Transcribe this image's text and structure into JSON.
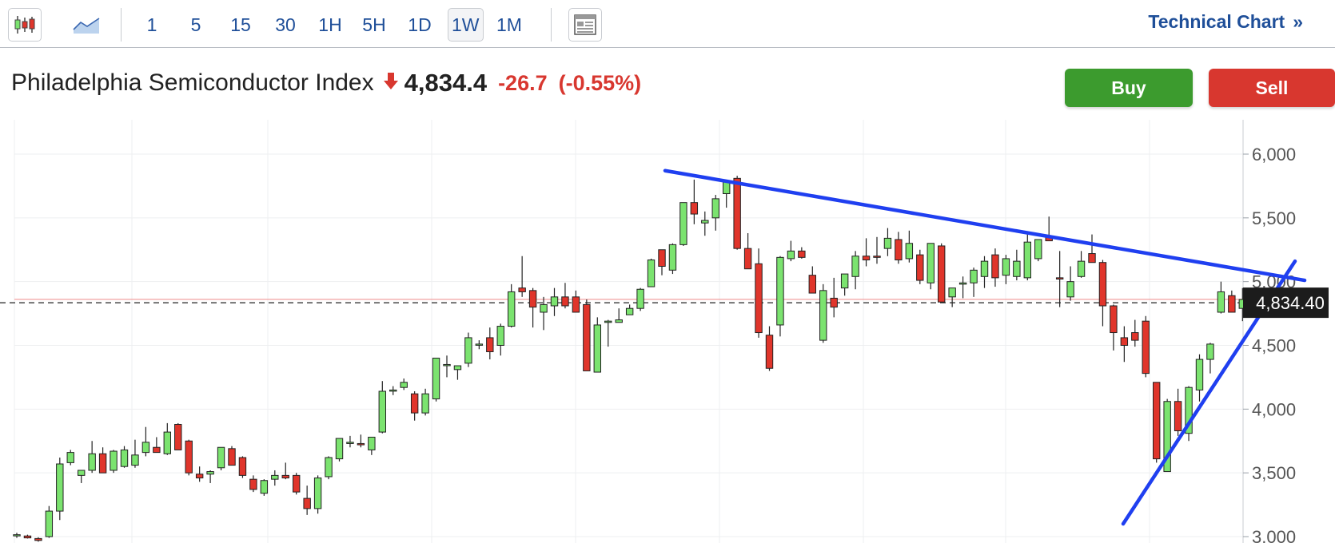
{
  "toolbar": {
    "intervals": [
      "1",
      "5",
      "15",
      "30",
      "1H",
      "5H",
      "1D",
      "1W",
      "1M"
    ],
    "active_interval": "1W",
    "technical_chart_label": "Technical Chart",
    "technical_chart_chevron": "»",
    "icons": [
      "candlestick-icon",
      "area-chart-icon",
      "news-layout-icon"
    ]
  },
  "quote": {
    "name": "Philadelphia Semiconductor Index",
    "price": "4,834.4",
    "change": "-26.7",
    "change_pct": "(-0.55%)",
    "direction": "down"
  },
  "buttons": {
    "buy": "Buy",
    "sell": "Sell"
  },
  "colors": {
    "up": "#7be36f",
    "down": "#e0352b",
    "trendline": "#1f3ff0",
    "buy": "#3c9b2e",
    "sell": "#d8372f",
    "link": "#1f4f99"
  },
  "chart_data": {
    "type": "candlestick",
    "interval": "1W",
    "ylim": [
      3000,
      6200
    ],
    "y_ticks": [
      "3,000",
      "3,500",
      "4,000",
      "4,500",
      "5,000",
      "5,500",
      "6,000"
    ],
    "y_tick_values": [
      3000,
      3500,
      4000,
      4500,
      5000,
      5500,
      6000
    ],
    "last_price_label": "4,834.40",
    "last_price": 4834.4,
    "reference_price": 4861.1,
    "candles_ohlc": [
      [
        3010,
        3030,
        2990,
        3015
      ],
      [
        3005,
        3015,
        2985,
        2990
      ],
      [
        2985,
        2995,
        2960,
        2970
      ],
      [
        3000,
        3240,
        2990,
        3200
      ],
      [
        3200,
        3620,
        3130,
        3570
      ],
      [
        3580,
        3680,
        3560,
        3660
      ],
      [
        3480,
        3520,
        3420,
        3520
      ],
      [
        3520,
        3750,
        3500,
        3650
      ],
      [
        3650,
        3700,
        3500,
        3500
      ],
      [
        3520,
        3680,
        3500,
        3670
      ],
      [
        3550,
        3710,
        3540,
        3680
      ],
      [
        3560,
        3760,
        3540,
        3640
      ],
      [
        3660,
        3860,
        3630,
        3740
      ],
      [
        3700,
        3780,
        3660,
        3660
      ],
      [
        3650,
        3890,
        3640,
        3820
      ],
      [
        3880,
        3890,
        3680,
        3680
      ],
      [
        3750,
        3760,
        3480,
        3500
      ],
      [
        3490,
        3550,
        3430,
        3460
      ],
      [
        3490,
        3520,
        3420,
        3510
      ],
      [
        3540,
        3700,
        3520,
        3700
      ],
      [
        3690,
        3710,
        3560,
        3560
      ],
      [
        3620,
        3630,
        3460,
        3480
      ],
      [
        3450,
        3480,
        3350,
        3370
      ],
      [
        3340,
        3450,
        3320,
        3440
      ],
      [
        3450,
        3520,
        3400,
        3480
      ],
      [
        3480,
        3580,
        3450,
        3460
      ],
      [
        3480,
        3500,
        3330,
        3350
      ],
      [
        3300,
        3400,
        3170,
        3220
      ],
      [
        3220,
        3480,
        3180,
        3460
      ],
      [
        3470,
        3630,
        3450,
        3620
      ],
      [
        3610,
        3760,
        3590,
        3770
      ],
      [
        3730,
        3790,
        3700,
        3740
      ],
      [
        3730,
        3800,
        3700,
        3720
      ],
      [
        3680,
        3780,
        3640,
        3780
      ],
      [
        3820,
        4220,
        3810,
        4140
      ],
      [
        4150,
        4180,
        4110,
        4150
      ],
      [
        4170,
        4240,
        4150,
        4210
      ],
      [
        4120,
        4140,
        3910,
        3970
      ],
      [
        3970,
        4160,
        3950,
        4120
      ],
      [
        4080,
        4400,
        4060,
        4400
      ],
      [
        4350,
        4420,
        4250,
        4350
      ],
      [
        4310,
        4340,
        4230,
        4340
      ],
      [
        4360,
        4600,
        4330,
        4560
      ],
      [
        4510,
        4540,
        4470,
        4510
      ],
      [
        4560,
        4640,
        4390,
        4450
      ],
      [
        4500,
        4670,
        4420,
        4650
      ],
      [
        4650,
        4980,
        4640,
        4920
      ],
      [
        4950,
        5200,
        4880,
        4920
      ],
      [
        4930,
        4950,
        4640,
        4800
      ],
      [
        4760,
        4880,
        4620,
        4820
      ],
      [
        4810,
        4950,
        4730,
        4880
      ],
      [
        4880,
        4990,
        4790,
        4810
      ],
      [
        4880,
        4930,
        4760,
        4760
      ],
      [
        4820,
        4860,
        4300,
        4300
      ],
      [
        4290,
        4720,
        4290,
        4660
      ],
      [
        4680,
        4700,
        4490,
        4690
      ],
      [
        4680,
        4790,
        4680,
        4700
      ],
      [
        4740,
        4820,
        4740,
        4790
      ],
      [
        4790,
        4950,
        4770,
        4940
      ],
      [
        4960,
        5180,
        4960,
        5170
      ],
      [
        5250,
        5250,
        5050,
        5120
      ],
      [
        5090,
        5300,
        5060,
        5290
      ],
      [
        5290,
        5620,
        5280,
        5620
      ],
      [
        5620,
        5800,
        5450,
        5530
      ],
      [
        5460,
        5550,
        5360,
        5480
      ],
      [
        5500,
        5680,
        5400,
        5650
      ],
      [
        5690,
        5790,
        5580,
        5790
      ],
      [
        5810,
        5830,
        5250,
        5260
      ],
      [
        5260,
        5380,
        5100,
        5100
      ],
      [
        5140,
        5260,
        4560,
        4600
      ],
      [
        4580,
        4650,
        4300,
        4320
      ],
      [
        4660,
        5200,
        4570,
        5190
      ],
      [
        5180,
        5320,
        5160,
        5240
      ],
      [
        5240,
        5270,
        5180,
        5190
      ],
      [
        5050,
        5120,
        4920,
        4910
      ],
      [
        4540,
        4980,
        4520,
        4930
      ],
      [
        4870,
        5030,
        4720,
        4800
      ],
      [
        4950,
        5060,
        4890,
        5060
      ],
      [
        5040,
        5240,
        4940,
        5200
      ],
      [
        5200,
        5340,
        5120,
        5170
      ],
      [
        5200,
        5350,
        5140,
        5190
      ],
      [
        5260,
        5420,
        5200,
        5340
      ],
      [
        5330,
        5390,
        5140,
        5170
      ],
      [
        5180,
        5400,
        5150,
        5300
      ],
      [
        5210,
        5250,
        4980,
        5010
      ],
      [
        4990,
        5300,
        4940,
        5300
      ],
      [
        5280,
        5300,
        4860,
        4840
      ],
      [
        4880,
        4950,
        4800,
        4950
      ],
      [
        4980,
        5040,
        4870,
        4990
      ],
      [
        4990,
        5110,
        4880,
        5090
      ],
      [
        5040,
        5200,
        4950,
        5160
      ],
      [
        5210,
        5260,
        4960,
        5030
      ],
      [
        5050,
        5210,
        4980,
        5180
      ],
      [
        5040,
        5250,
        5010,
        5160
      ],
      [
        5030,
        5390,
        5010,
        5310
      ],
      [
        5180,
        5330,
        5160,
        5330
      ],
      [
        5350,
        5510,
        5320,
        5320
      ],
      [
        5030,
        5240,
        4800,
        5020
      ],
      [
        4880,
        5120,
        4850,
        5000
      ],
      [
        5040,
        5240,
        5030,
        5160
      ],
      [
        5220,
        5370,
        5150,
        5150
      ],
      [
        5150,
        5170,
        4650,
        4810
      ],
      [
        4810,
        4820,
        4460,
        4600
      ],
      [
        4560,
        4650,
        4370,
        4500
      ],
      [
        4600,
        4700,
        4490,
        4540
      ],
      [
        4690,
        4730,
        4250,
        4280
      ],
      [
        4210,
        4200,
        3580,
        3610
      ],
      [
        3510,
        4080,
        3520,
        4060
      ],
      [
        4060,
        4160,
        3790,
        3830
      ],
      [
        3810,
        4180,
        3750,
        4170
      ],
      [
        4150,
        4430,
        4060,
        4390
      ],
      [
        4390,
        4520,
        4280,
        4510
      ],
      [
        4760,
        5000,
        4750,
        4920
      ],
      [
        4890,
        4930,
        4760,
        4760
      ],
      [
        4790,
        4950,
        4690,
        4860
      ],
      [
        4810,
        4880,
        4800,
        4840
      ]
    ],
    "trendlines": [
      {
        "points": [
          [
            832,
            5870
          ],
          [
            1632,
            5010
          ]
        ]
      },
      {
        "points": [
          [
            1405,
            3100
          ],
          [
            1620,
            5160
          ]
        ]
      }
    ]
  }
}
